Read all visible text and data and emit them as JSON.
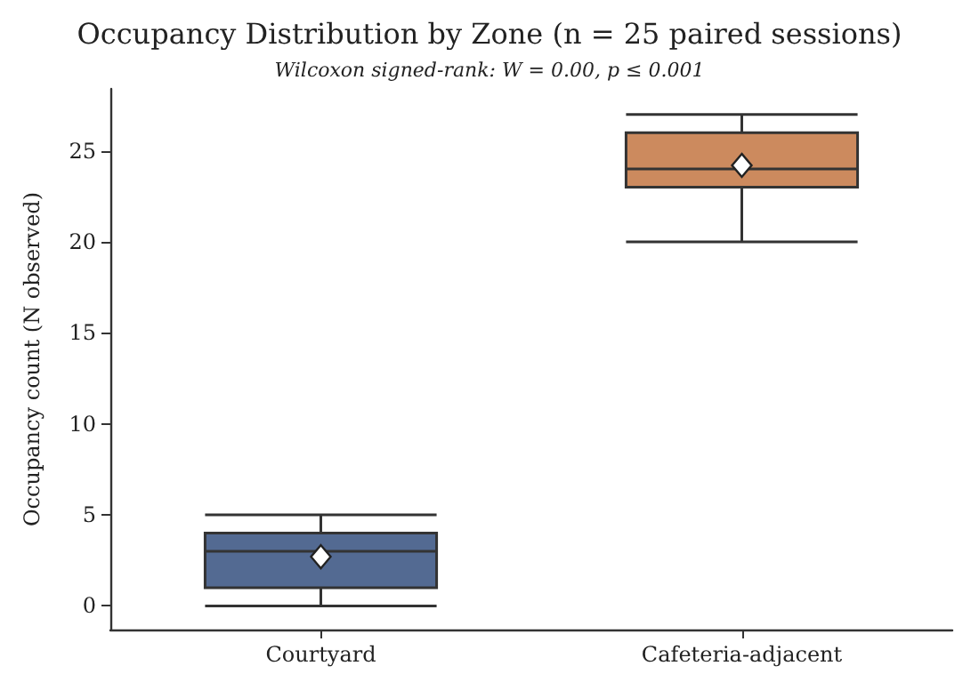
{
  "chart_data": {
    "type": "box",
    "title": "Occupancy Distribution by Zone (n = 25 paired sessions)",
    "ylabel": "Occupancy count (N observed)",
    "annotations": [
      "Wilcoxon signed-rank: W = 0.00, p ≤ 0.001"
    ],
    "categories": [
      "Courtyard",
      "Cafeteria-adjacent"
    ],
    "colors": [
      "#536a92",
      "#cc8a5e"
    ],
    "boxes": [
      {
        "low": 0,
        "q1": 1,
        "median": 3,
        "q3": 4,
        "high": 5,
        "mean": 2.7
      },
      {
        "low": 20,
        "q1": 23,
        "median": 24,
        "q3": 26,
        "high": 27,
        "mean": 24.2
      }
    ],
    "ylim": [
      -1.3,
      28.4
    ],
    "yticks": [
      0,
      5,
      10,
      15,
      20,
      25
    ],
    "grid": false
  }
}
